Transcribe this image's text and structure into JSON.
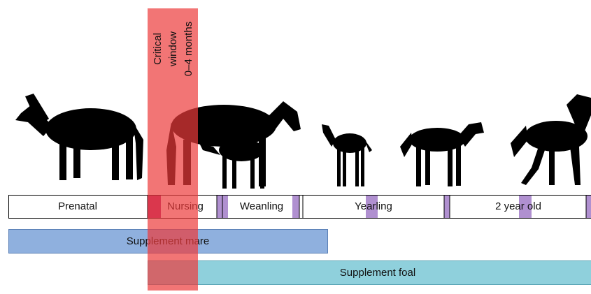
{
  "critical_window": {
    "lines": [
      "Critical",
      "window",
      "0–4 months"
    ]
  },
  "timeline": {
    "stages": [
      "Prenatal",
      "Nursing",
      "Weanling",
      "Yearling",
      "2 year old"
    ]
  },
  "supplements": {
    "mare": "Supplement mare",
    "foal": "Supplement foal"
  }
}
